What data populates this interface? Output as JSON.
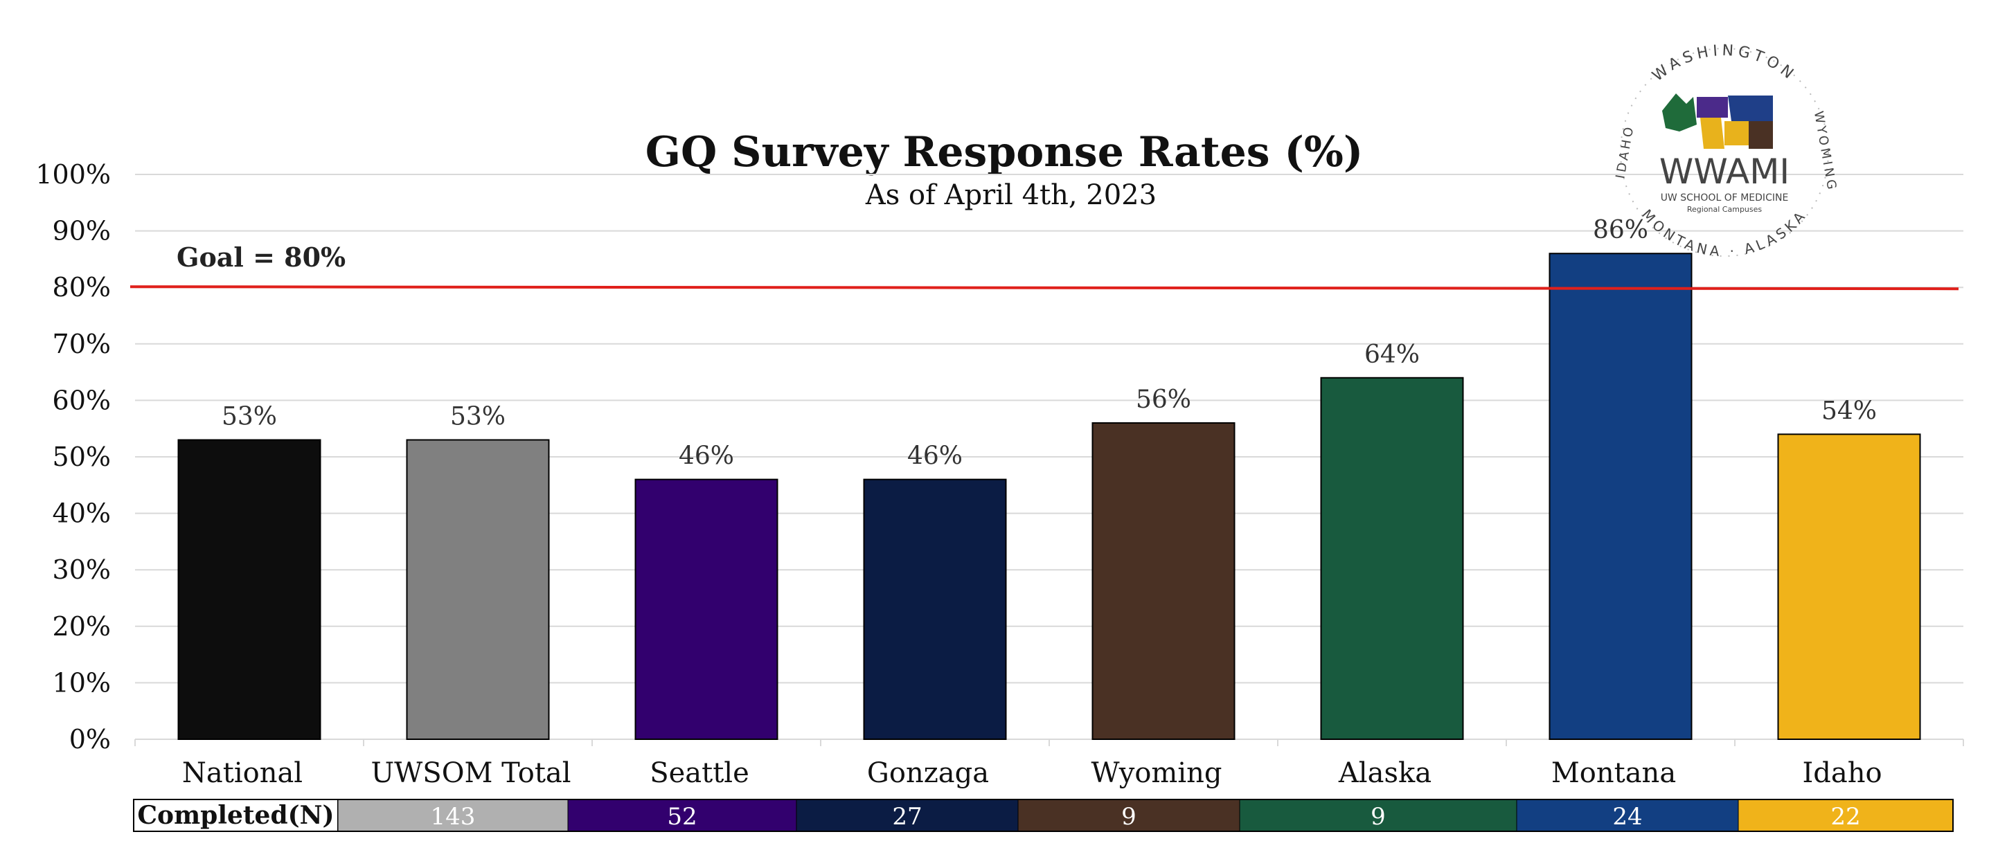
{
  "chart_data": {
    "type": "bar",
    "title": "GQ Survey Response Rates (%)",
    "subtitle": "As of April 4th, 2023",
    "categories": [
      "National",
      "UWSOM Total",
      "Seattle",
      "Gonzaga",
      "Wyoming",
      "Alaska",
      "Montana",
      "Idaho"
    ],
    "values": [
      53,
      53,
      46,
      46,
      56,
      64,
      86,
      54
    ],
    "value_labels": [
      "53%",
      "53%",
      "46%",
      "46%",
      "56%",
      "64%",
      "86%",
      "54%"
    ],
    "colors": [
      "#0d0d0d",
      "#808080",
      "#32006e",
      "#0b1c44",
      "#4a3124",
      "#185a3e",
      "#123f82",
      "#f0b31a"
    ],
    "ylim": [
      0,
      100
    ],
    "yticks": [
      0,
      10,
      20,
      30,
      40,
      50,
      60,
      70,
      80,
      90,
      100
    ],
    "ytick_labels": [
      "0%",
      "10%",
      "20%",
      "30%",
      "40%",
      "50%",
      "60%",
      "70%",
      "80%",
      "90%",
      "100%"
    ],
    "grid": true,
    "goal": {
      "value": 80,
      "label": "Goal = 80%",
      "color": "#e0201b"
    },
    "completed_table": {
      "header": "Completed(N)",
      "values": [
        "143",
        "52",
        "27",
        "9",
        "9",
        "24",
        "22"
      ],
      "colors": [
        "#b0b0b0",
        "#32006e",
        "#0b1c44",
        "#4a3124",
        "#185a3e",
        "#123f82",
        "#f0b31a"
      ]
    }
  },
  "logo": {
    "top_arc": "WASHINGTON",
    "left_arc": "IDAHO",
    "right_arc": "WYOMING",
    "bottom_arc": "MONTANA · ALASKA",
    "wordmark": "WWAMI",
    "line1": "UW SCHOOL OF MEDICINE",
    "line2": "Regional Campuses"
  }
}
